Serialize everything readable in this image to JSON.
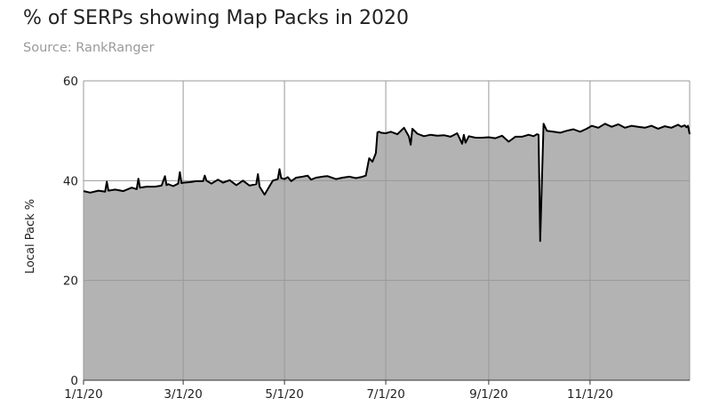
{
  "chart_data": {
    "type": "area",
    "title": "% of SERPs showing Map Packs in 2020",
    "subtitle": "Source: RankRanger",
    "xlabel": "",
    "ylabel": "Local Pack %",
    "ylim": [
      0,
      60
    ],
    "xlim": [
      "2020-01-01",
      "2020-12-31"
    ],
    "y_ticks": [
      0,
      20,
      40,
      60
    ],
    "x_ticks": [
      {
        "date": "2020-01-01",
        "label": "1/1/20"
      },
      {
        "date": "2020-03-01",
        "label": "3/1/20"
      },
      {
        "date": "2020-05-01",
        "label": "5/1/20"
      },
      {
        "date": "2020-07-01",
        "label": "7/1/20"
      },
      {
        "date": "2020-09-01",
        "label": "9/1/20"
      },
      {
        "date": "2020-11-01",
        "label": "11/1/20"
      }
    ],
    "grid": true,
    "legend": "none",
    "colors": {
      "fill": "#b3b3b3",
      "line": "#000000",
      "grid": "#999999",
      "background": "#ffffff"
    },
    "series": [
      {
        "x": [
          "2020-01-01",
          "2020-01-05",
          "2020-01-10",
          "2020-01-14",
          "2020-01-15",
          "2020-01-16",
          "2020-01-20",
          "2020-01-25",
          "2020-01-30",
          "2020-02-02",
          "2020-02-03",
          "2020-02-04",
          "2020-02-08",
          "2020-02-13",
          "2020-02-17",
          "2020-02-19",
          "2020-02-20",
          "2020-02-21",
          "2020-02-24",
          "2020-02-27",
          "2020-02-28",
          "2020-02-29",
          "2020-03-01",
          "2020-03-05",
          "2020-03-09",
          "2020-03-13",
          "2020-03-14",
          "2020-03-15",
          "2020-03-18",
          "2020-03-22",
          "2020-03-25",
          "2020-03-29",
          "2020-04-02",
          "2020-04-06",
          "2020-04-10",
          "2020-04-14",
          "2020-04-15",
          "2020-04-16",
          "2020-04-19",
          "2020-04-22",
          "2020-04-24",
          "2020-04-27",
          "2020-04-28",
          "2020-04-29",
          "2020-05-01",
          "2020-05-03",
          "2020-05-05",
          "2020-05-08",
          "2020-05-12",
          "2020-05-15",
          "2020-05-17",
          "2020-05-20",
          "2020-05-24",
          "2020-05-27",
          "2020-06-01",
          "2020-06-05",
          "2020-06-09",
          "2020-06-13",
          "2020-06-16",
          "2020-06-19",
          "2020-06-21",
          "2020-06-23",
          "2020-06-25",
          "2020-06-26",
          "2020-06-27",
          "2020-06-28",
          "2020-07-01",
          "2020-07-04",
          "2020-07-08",
          "2020-07-12",
          "2020-07-15",
          "2020-07-16",
          "2020-07-17",
          "2020-07-20",
          "2020-07-24",
          "2020-07-28",
          "2020-08-01",
          "2020-08-05",
          "2020-08-09",
          "2020-08-13",
          "2020-08-16",
          "2020-08-17",
          "2020-08-18",
          "2020-08-20",
          "2020-08-24",
          "2020-08-28",
          "2020-09-01",
          "2020-09-05",
          "2020-09-09",
          "2020-09-13",
          "2020-09-17",
          "2020-09-21",
          "2020-09-25",
          "2020-09-28",
          "2020-09-30",
          "2020-10-01",
          "2020-10-02",
          "2020-10-04",
          "2020-10-06",
          "2020-10-10",
          "2020-10-14",
          "2020-10-18",
          "2020-10-22",
          "2020-10-26",
          "2020-10-30",
          "2020-11-02",
          "2020-11-06",
          "2020-11-10",
          "2020-11-14",
          "2020-11-18",
          "2020-11-22",
          "2020-11-26",
          "2020-11-30",
          "2020-12-04",
          "2020-12-08",
          "2020-12-12",
          "2020-12-16",
          "2020-12-20",
          "2020-12-24",
          "2020-12-26",
          "2020-12-28",
          "2020-12-29",
          "2020-12-30",
          "2020-12-31"
        ],
        "y": [
          37.9,
          37.6,
          38.0,
          37.8,
          39.8,
          38.0,
          38.2,
          37.9,
          38.6,
          38.3,
          40.4,
          38.6,
          38.8,
          38.8,
          39.0,
          40.9,
          39.1,
          39.3,
          38.9,
          39.4,
          41.7,
          39.5,
          39.6,
          39.7,
          39.9,
          39.9,
          41.0,
          40.0,
          39.4,
          40.2,
          39.6,
          40.1,
          39.1,
          40.0,
          39.0,
          39.3,
          41.3,
          38.8,
          37.2,
          38.9,
          40.0,
          40.3,
          42.3,
          40.5,
          40.3,
          40.7,
          39.9,
          40.6,
          40.8,
          41.0,
          40.2,
          40.6,
          40.8,
          40.9,
          40.3,
          40.6,
          40.8,
          40.5,
          40.7,
          41.0,
          44.5,
          43.8,
          45.5,
          49.7,
          49.8,
          49.6,
          49.5,
          49.8,
          49.3,
          50.6,
          48.8,
          47.2,
          50.4,
          49.4,
          48.9,
          49.2,
          49.0,
          49.1,
          48.8,
          49.5,
          47.4,
          49.2,
          47.6,
          48.9,
          48.6,
          48.6,
          48.7,
          48.5,
          49.0,
          47.8,
          48.8,
          48.8,
          49.2,
          48.9,
          49.3,
          49.2,
          27.9,
          51.4,
          50.0,
          49.8,
          49.6,
          50.0,
          50.3,
          49.8,
          50.4,
          51.0,
          50.6,
          51.4,
          50.8,
          51.3,
          50.6,
          51.0,
          50.8,
          50.6,
          51.0,
          50.4,
          50.9,
          50.6,
          51.2,
          50.8,
          51.1,
          50.7,
          51.0,
          49.3
        ]
      }
    ]
  }
}
